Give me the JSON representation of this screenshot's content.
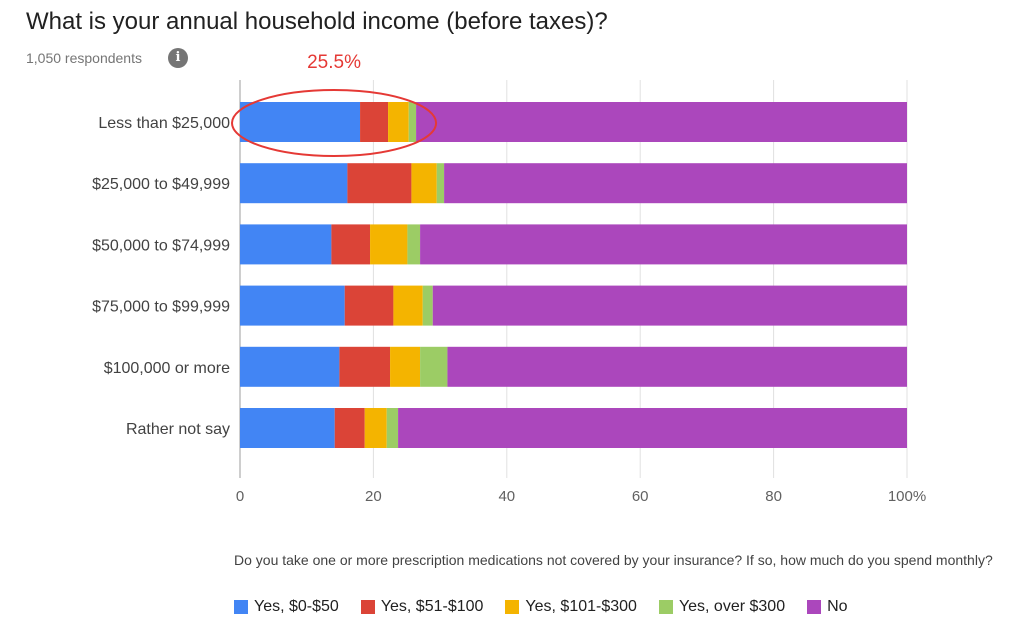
{
  "header": {
    "title": "What is your annual household income (before taxes)?",
    "respondents": "1,050 respondents",
    "info_icon": "i"
  },
  "annotation": {
    "label": "25.5%",
    "color": "#e53935"
  },
  "question": "Do you take one or more prescription medications not covered by your insurance? If so, how much do you spend monthly?",
  "chart_data": {
    "type": "bar",
    "orientation": "horizontal",
    "stacked": true,
    "categories": [
      "Less than $25,000",
      "$25,000 to $49,999",
      "$50,000 to $74,999",
      "$75,000 to $99,999",
      "$100,000 or more",
      "Rather not say"
    ],
    "series": [
      {
        "name": "Yes, $0-$50",
        "color": "#4285f4",
        "values": [
          18.0,
          16.1,
          13.7,
          15.7,
          14.9,
          14.2
        ]
      },
      {
        "name": "Yes, $51-$100",
        "color": "#db4437",
        "values": [
          4.2,
          9.6,
          5.8,
          7.3,
          7.6,
          4.5
        ]
      },
      {
        "name": "Yes, $101-$300",
        "color": "#f4b400",
        "values": [
          3.1,
          3.8,
          5.6,
          4.4,
          4.5,
          3.3
        ]
      },
      {
        "name": "Yes, over $300",
        "color": "#9ccc65",
        "values": [
          1.1,
          1.1,
          1.9,
          1.5,
          4.1,
          1.7
        ]
      },
      {
        "name": "No",
        "color": "#ab47bc",
        "values": [
          73.6,
          69.4,
          73.0,
          71.1,
          68.9,
          76.3
        ]
      }
    ],
    "xlim": [
      0,
      100
    ],
    "xticks": [
      "0",
      "20",
      "40",
      "60",
      "80",
      "100%"
    ],
    "grid": true,
    "legend_position": "bottom"
  }
}
